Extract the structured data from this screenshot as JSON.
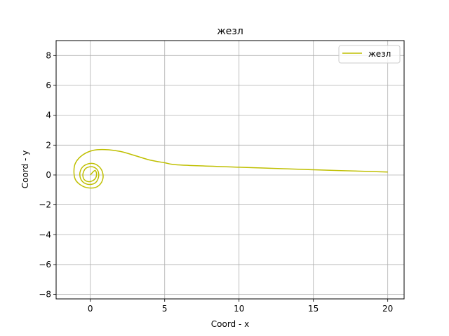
{
  "chart_data": {
    "type": "line",
    "title": "жезл",
    "xlabel": "Coord - x",
    "ylabel": "Coord - y",
    "xlim": [
      -2.3,
      21.1
    ],
    "ylim": [
      -8.3,
      9.0
    ],
    "xticks": [
      0,
      5,
      10,
      15,
      20
    ],
    "yticks": [
      -8,
      -6,
      -4,
      -2,
      0,
      2,
      4,
      6,
      8
    ],
    "grid": true,
    "legend_position": "top-right",
    "series": [
      {
        "name": "жезл",
        "color": "#bfbf00",
        "description_of_shape": "lituus spiral r = 1/sqrt(theta)",
        "x": [
          20.0,
          15.0,
          10.0,
          6.0,
          5.0,
          4.0,
          3.0,
          2.0,
          1.0,
          0.2,
          -0.5,
          -1.0,
          -1.1,
          -0.95,
          -0.4,
          0.3,
          0.75,
          0.85,
          0.6,
          0.1,
          -0.45,
          -0.7,
          -0.6,
          -0.2,
          0.3,
          0.55,
          0.5,
          0.15,
          -0.3,
          -0.5,
          -0.4,
          -0.05,
          0.3,
          0.42,
          0.3,
          0.0
        ],
        "y": [
          0.2,
          0.35,
          0.52,
          0.67,
          0.82,
          1.0,
          1.3,
          1.58,
          1.7,
          1.65,
          1.35,
          0.8,
          0.15,
          -0.4,
          -0.8,
          -0.85,
          -0.5,
          0.05,
          0.55,
          0.78,
          0.6,
          0.15,
          -0.35,
          -0.62,
          -0.55,
          -0.15,
          0.3,
          0.55,
          0.45,
          0.05,
          -0.32,
          -0.45,
          -0.28,
          0.05,
          0.3,
          0.0
        ]
      }
    ]
  }
}
